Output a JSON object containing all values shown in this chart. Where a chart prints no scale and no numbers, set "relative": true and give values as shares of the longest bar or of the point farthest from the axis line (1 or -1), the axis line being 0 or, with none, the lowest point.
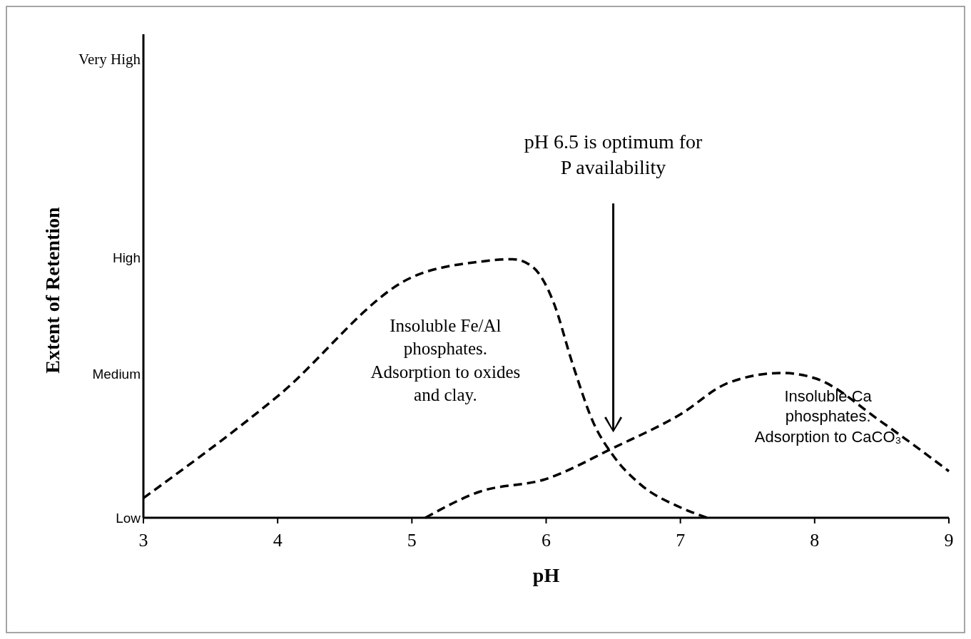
{
  "chart_data": {
    "type": "line",
    "xlabel": "pH",
    "ylabel": "Extent of Retention",
    "xlim": [
      3,
      9
    ],
    "xticks": [
      3,
      4,
      5,
      6,
      7,
      8,
      9
    ],
    "relative": true,
    "series": [
      {
        "color": "#000000",
        "x": [
          3,
          4,
          5,
          5.5,
          5.75,
          5.9,
          6.05,
          6.2,
          6.35,
          6.5,
          6.7,
          7,
          7.2
        ],
        "values": [
          0.076,
          0.47,
          0.93,
          0.99,
          1,
          0.97,
          0.84,
          0.59,
          0.37,
          0.24,
          0.13,
          0.04,
          0
        ]
      },
      {
        "color": "#000000",
        "x": [
          5.1,
          5.5,
          6,
          6.5,
          7,
          7.35,
          7.75,
          8,
          8.5,
          9
        ],
        "values": [
          0,
          0.1,
          0.15,
          0.27,
          0.4,
          0.52,
          0.56,
          0.54,
          0.37,
          0.18
        ]
      }
    ],
    "annotations": [
      "pH 6.5 is optimum for P availability",
      "Insoluble Fe/Al phosphates. Adsorption to oxides and clay.",
      "Insoluble Ca phosphates. Adsorption to CaCO₃",
      "Low",
      "Medium",
      "High",
      "Very High"
    ],
    "grid": false,
    "marker": "none",
    "line_style": "dashed"
  }
}
